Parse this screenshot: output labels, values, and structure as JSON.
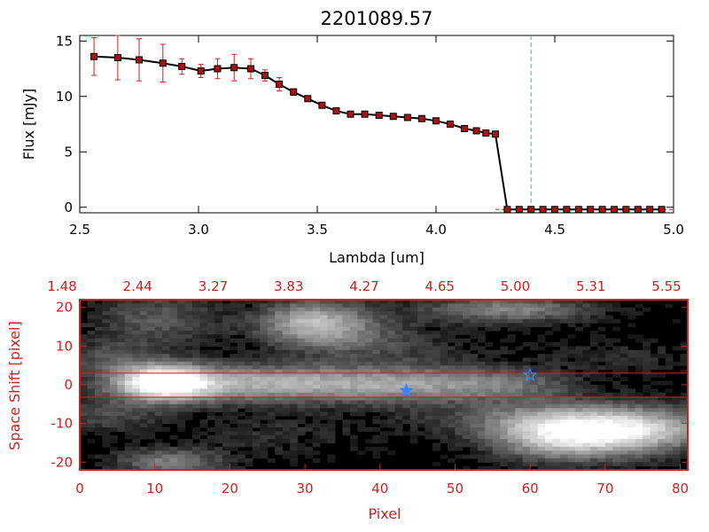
{
  "colors": {
    "background": "#ffffff",
    "axis_black": "#000000",
    "spectrum_line": "#000000",
    "error_bar": "#cc2222",
    "marker_fill": "#aa1111",
    "red_axis": "#cc2222",
    "guide_line": "#5599ff",
    "star_marker": "#3388ff"
  },
  "chart_data": [
    {
      "type": "line",
      "title": "2201089.57",
      "xlabel": "Lambda [um]",
      "ylabel": "Flux [mJy]",
      "xlim": [
        2.5,
        5.0
      ],
      "ylim": [
        -0.5,
        15.5
      ],
      "x_ticks": [
        "2.5",
        "3.0",
        "3.5",
        "4.0",
        "4.5",
        "5.0"
      ],
      "y_ticks": [
        "0",
        "5",
        "10",
        "15"
      ],
      "guide_x": 4.4,
      "series": [
        {
          "x": [
            2.56,
            2.66,
            2.75,
            2.85,
            2.93,
            3.01,
            3.08,
            3.15,
            3.22,
            3.28,
            3.34,
            3.4,
            3.46,
            3.52,
            3.58,
            3.64,
            3.7,
            3.76,
            3.82,
            3.88,
            3.94,
            4.0,
            4.06,
            4.12,
            4.17,
            4.21,
            4.25,
            4.3,
            4.35,
            4.4,
            4.45,
            4.5,
            4.55,
            4.6,
            4.65,
            4.7,
            4.75,
            4.8,
            4.85,
            4.9,
            4.95
          ],
          "y": [
            13.6,
            13.5,
            13.3,
            13.0,
            12.7,
            12.3,
            12.5,
            12.6,
            12.5,
            11.9,
            11.1,
            10.4,
            9.8,
            9.2,
            8.7,
            8.4,
            8.4,
            8.3,
            8.2,
            8.1,
            8.0,
            7.8,
            7.5,
            7.1,
            6.9,
            6.7,
            6.6,
            -0.2,
            -0.2,
            -0.2,
            -0.2,
            -0.2,
            -0.2,
            -0.2,
            -0.2,
            -0.2,
            -0.2,
            -0.2,
            -0.2,
            -0.2,
            -0.2
          ],
          "err": [
            1.7,
            2.0,
            1.9,
            1.7,
            0.7,
            0.6,
            0.9,
            1.2,
            0.9,
            0.5,
            0.6,
            0.3,
            0.2,
            0.2,
            0.2,
            0.1,
            0.1,
            0.1,
            0.1,
            0.1,
            0.1,
            0.1,
            0.1,
            0.1,
            0.1,
            0.1,
            0.1,
            0,
            0,
            0,
            0,
            0,
            0,
            0,
            0,
            0,
            0,
            0,
            0,
            0,
            0
          ]
        }
      ]
    },
    {
      "type": "heatmap",
      "xlabel": "Pixel",
      "ylabel": "Space Shift [pixel]",
      "xlim": [
        0,
        81
      ],
      "ylim": [
        -22,
        22
      ],
      "x_ticks": [
        "0",
        "10",
        "20",
        "30",
        "40",
        "50",
        "60",
        "70",
        "80"
      ],
      "y_ticks": [
        "-20",
        "-10",
        "0",
        "10",
        "20"
      ],
      "top_ticks": [
        "1.48",
        "2.44",
        "3.27",
        "3.83",
        "4.27",
        "4.65",
        "5.00",
        "5.31",
        "5.55"
      ],
      "aperture_y": [
        3.0,
        -3.2
      ],
      "stars": [
        {
          "x": 43.5,
          "y": -1.5,
          "filled": true
        },
        {
          "x": 60.0,
          "y": 2.5,
          "filled": false
        }
      ],
      "blobs": [
        {
          "x": 11,
          "y": 0.5,
          "sx": 4.5,
          "sy": 3.2,
          "amp": 1.0
        },
        {
          "x": 25,
          "y": 0.3,
          "sx": 12,
          "sy": 3.4,
          "amp": 0.62
        },
        {
          "x": 46,
          "y": 0.0,
          "sx": 9,
          "sy": 3.2,
          "amp": 0.42
        },
        {
          "x": 58,
          "y": 0.0,
          "sx": 6,
          "sy": 2.8,
          "amp": 0.22
        },
        {
          "x": 65,
          "y": -12.5,
          "sx": 7,
          "sy": 4.5,
          "amp": 0.95
        },
        {
          "x": 76,
          "y": -11.5,
          "sx": 6,
          "sy": 4.0,
          "amp": 0.6
        },
        {
          "x": 55,
          "y": -8.5,
          "sx": 10,
          "sy": 3.0,
          "amp": 0.18
        },
        {
          "x": 31,
          "y": 16.5,
          "sx": 5,
          "sy": 4.0,
          "amp": 0.58
        },
        {
          "x": 36,
          "y": 12.5,
          "sx": 7,
          "sy": 4.0,
          "amp": 0.25
        },
        {
          "x": 57,
          "y": 19.5,
          "sx": 8,
          "sy": 2.5,
          "amp": 0.45
        },
        {
          "x": 10,
          "y": 17.0,
          "sx": 6,
          "sy": 5.0,
          "amp": 0.28
        },
        {
          "x": 4,
          "y": 7.0,
          "sx": 5,
          "sy": 3.0,
          "amp": 0.22
        },
        {
          "x": 4,
          "y": -8.0,
          "sx": 5,
          "sy": 3.0,
          "amp": 0.22
        },
        {
          "x": 12,
          "y": -20.0,
          "sx": 5,
          "sy": 2.5,
          "amp": 0.42
        },
        {
          "x": 26,
          "y": -13.0,
          "sx": 8,
          "sy": 4.0,
          "amp": 0.12
        },
        {
          "x": 72,
          "y": 7.0,
          "sx": 8,
          "sy": 3.0,
          "amp": 0.12
        },
        {
          "x": 46,
          "y": 8.0,
          "sx": 8,
          "sy": 3.0,
          "amp": 0.1
        }
      ]
    }
  ]
}
